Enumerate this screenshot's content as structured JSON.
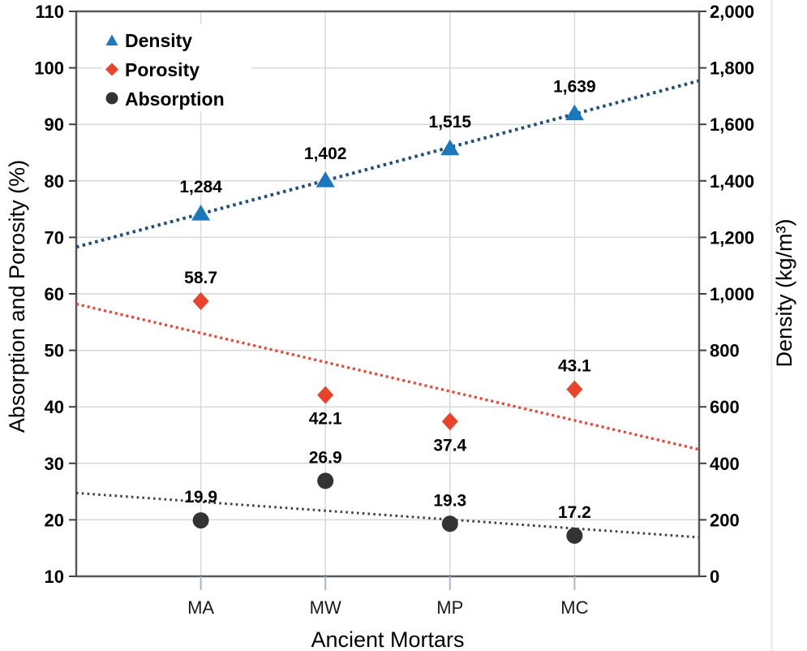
{
  "chart_data": {
    "type": "scatter",
    "title": "",
    "x_axis_label": "Ancient Mortars",
    "categories": [
      "MA",
      "MW",
      "MP",
      "MC"
    ],
    "left_axis": {
      "label": "Absorption and Porosity (%)",
      "min": 10,
      "max": 110,
      "step": 10,
      "tick_labels": [
        "110",
        "100",
        "90",
        "80",
        "70",
        "60",
        "50",
        "40",
        "30",
        "20",
        "10"
      ]
    },
    "right_axis": {
      "label": "Density (kg/m³)",
      "min": 0,
      "max": 2000,
      "step": 200,
      "tick_labels": [
        "2,000",
        "1,800",
        "1,600",
        "1,400",
        "1,200",
        "1,000",
        "800",
        "600",
        "400",
        "200",
        "0"
      ]
    },
    "series": [
      {
        "name": "Density",
        "axis": "right",
        "marker": "triangle",
        "marker_color": "#1b78be",
        "trend_color": "#1f4e79",
        "values": [
          1284,
          1402,
          1515,
          1639
        ],
        "point_labels": [
          "1,284",
          "1,402",
          "1,515",
          "1,639"
        ],
        "label_positions": [
          "above",
          "above",
          "above",
          "above"
        ],
        "trendline": "dotted"
      },
      {
        "name": "Porosity",
        "axis": "left",
        "marker": "diamond",
        "marker_color": "#e8432b",
        "trend_color": "#ee4130",
        "values": [
          58.7,
          42.1,
          37.4,
          43.1
        ],
        "point_labels": [
          "58.7",
          "42.1",
          "37.4",
          "43.1"
        ],
        "label_positions": [
          "above",
          "below",
          "below",
          "above"
        ],
        "trendline": "dotted"
      },
      {
        "name": "Absorption",
        "axis": "left",
        "marker": "circle",
        "marker_color": "#333333",
        "trend_color": "#424242",
        "values": [
          19.9,
          26.9,
          19.3,
          17.2
        ],
        "point_labels": [
          "19.9",
          "26.9",
          "19.3",
          "17.2"
        ],
        "label_positions": [
          "above",
          "above",
          "above",
          "above"
        ],
        "trendline": "dotted"
      }
    ],
    "grid": true,
    "legend_position": "top-left-inside"
  },
  "colors": {
    "grid": "#d9d9d9",
    "spine": "#595959",
    "axis_tick": "#404040",
    "x_tick": "#9fb9d0",
    "background": "#ffffff",
    "legend_bg": "#ffffff",
    "artifact": "#ebebeb"
  }
}
